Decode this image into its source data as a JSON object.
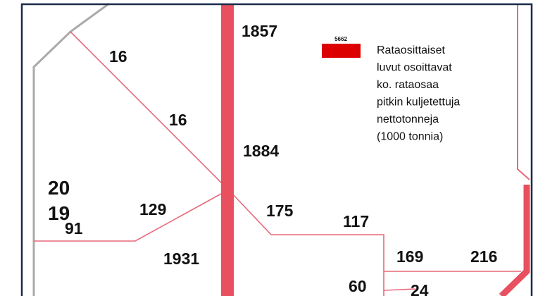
{
  "year": [
    "20",
    "19"
  ],
  "labels": [
    "1857",
    "16",
    "16",
    "1884",
    "91",
    "129",
    "175",
    "117",
    "1931",
    "169",
    "216",
    "60",
    "24"
  ],
  "legend": {
    "sample_value": "5662",
    "lines": [
      "Rataosittaiset",
      "luvut osoittavat",
      "ko. rataosaa",
      "pitkin kuljetettuja",
      "nettotonneja",
      "(1000 tonnia)"
    ]
  }
}
